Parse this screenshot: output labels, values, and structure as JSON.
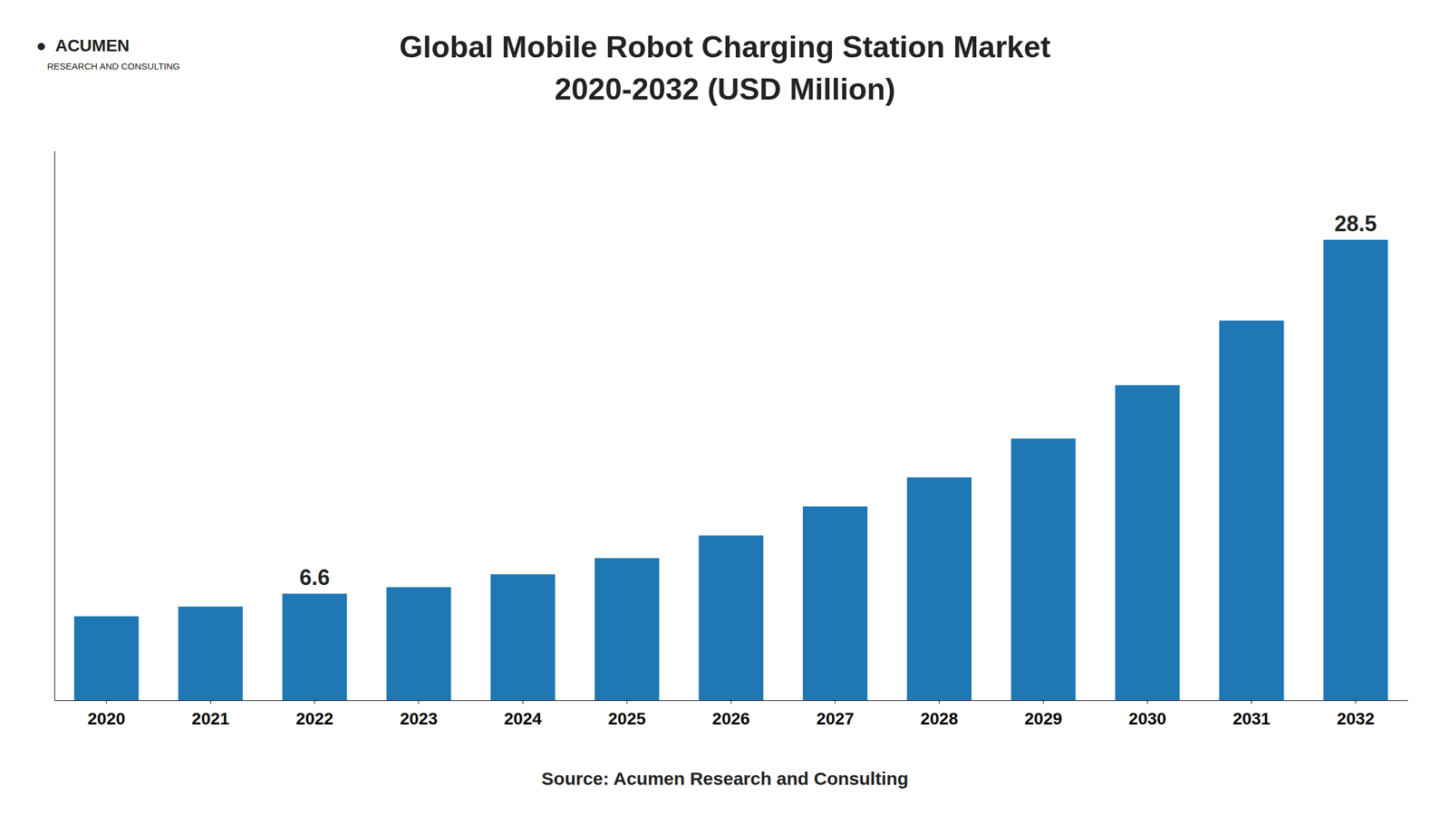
{
  "chart_data": {
    "type": "bar",
    "title": "Global Mobile Robot Charging Station Market",
    "subtitle": "2020-2032 (USD Million)",
    "annotations": [
      "●  ACUMEN",
      "RESEARCH AND CONSULTING",
      "Source: Acumen Research and Consulting"
    ],
    "categories": [
      "2020",
      "2021",
      "2022",
      "2023",
      "2024",
      "2025",
      "2026",
      "2027",
      "2028",
      "2029",
      "2030",
      "2031",
      "2032"
    ],
    "values": [
      5.2,
      5.8,
      6.6,
      7.0,
      7.8,
      8.8,
      10.2,
      12.0,
      13.8,
      16.2,
      19.5,
      23.5,
      28.5
    ],
    "value_labels": [
      null,
      null,
      "6.6",
      null,
      null,
      null,
      null,
      null,
      null,
      null,
      null,
      null,
      "28.5"
    ],
    "ylim": [
      0,
      34
    ],
    "tick_labels": "x",
    "grid": false
  }
}
